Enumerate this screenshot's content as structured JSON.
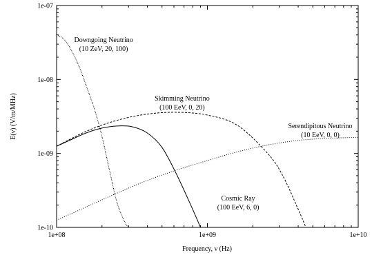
{
  "chart_data": {
    "type": "line",
    "xlabel": "Frequency, ν (Hz)",
    "ylabel": "E(ν) (V/m/MHz)",
    "xscale": "log",
    "yscale": "log",
    "xlim": [
      100000000.0,
      10000000000.0
    ],
    "ylim": [
      1e-10,
      1e-07
    ],
    "xticks": [
      {
        "value": 100000000.0,
        "label": "1e+08"
      },
      {
        "value": 1000000000.0,
        "label": "1e+09"
      },
      {
        "value": 10000000000.0,
        "label": "1e+10"
      }
    ],
    "yticks": [
      {
        "value": 1e-10,
        "label": "1e-10"
      },
      {
        "value": 1e-09,
        "label": "1e-09"
      },
      {
        "value": 1e-08,
        "label": "1e-08"
      },
      {
        "value": 1e-07,
        "label": "1e-07"
      }
    ],
    "grid": false,
    "legend": "none",
    "series": [
      {
        "id": "downgoing-neutrino",
        "dash": "dotted-fine",
        "label_lines": [
          "Downgoing Neutrino",
          "(10 ZeV, 20, 100)"
        ],
        "x": [
          100000000.0,
          112000000.0,
          125000000.0,
          141000000.0,
          158000000.0,
          178000000.0,
          200000000.0,
          224000000.0,
          251000000.0,
          282000000.0,
          300000000.0
        ],
        "y": [
          4e-08,
          3.5e-08,
          2.5e-08,
          1.5e-08,
          8e-09,
          4e-09,
          1.7e-09,
          6e-10,
          2.2e-10,
          1.2e-10,
          1e-10
        ]
      },
      {
        "id": "skimming-neutrino",
        "dash": "dashed",
        "label_lines": [
          "Skimming Neutrino",
          "(100 EeV, 0, 20)"
        ],
        "x": [
          100000000.0,
          158000000.0,
          251000000.0,
          398000000.0,
          631000000.0,
          1000000000.0,
          1580000000.0,
          2510000000.0,
          3160000000.0,
          3980000000.0,
          4500000000.0
        ],
        "y": [
          1.25e-09,
          2e-09,
          2.8e-09,
          3.4e-09,
          3.6e-09,
          3.3e-09,
          2.4e-09,
          1e-09,
          5e-10,
          1.8e-10,
          1e-10
        ]
      },
      {
        "id": "cosmic-ray",
        "dash": "solid",
        "label_lines": [
          "Cosmic Ray",
          "(100 EeV, 6, 0)"
        ],
        "x": [
          100000000.0,
          126000000.0,
          158000000.0,
          200000000.0,
          251000000.0,
          316000000.0,
          398000000.0,
          501000000.0,
          631000000.0,
          794000000.0,
          900000000.0
        ],
        "y": [
          1.25e-09,
          1.55e-09,
          1.9e-09,
          2.2e-09,
          2.35e-09,
          2.3e-09,
          1.9e-09,
          1.2e-09,
          5e-10,
          1.8e-10,
          1e-10
        ]
      },
      {
        "id": "serendipitous-neutrino",
        "dash": "dotted",
        "label_lines": [
          "Serendipitous Neutrino",
          "(10 EeV, 0, 0)"
        ],
        "x": [
          100000000.0,
          158000000.0,
          251000000.0,
          398000000.0,
          631000000.0,
          1000000000.0,
          1580000000.0,
          2510000000.0,
          3980000000.0,
          6310000000.0,
          10000000000.0
        ],
        "y": [
          1.25e-10,
          1.9e-10,
          2.9e-10,
          4.3e-10,
          6e-10,
          8e-10,
          1.05e-09,
          1.3e-09,
          1.5e-09,
          1.6e-09,
          1.65e-09
        ]
      }
    ]
  }
}
